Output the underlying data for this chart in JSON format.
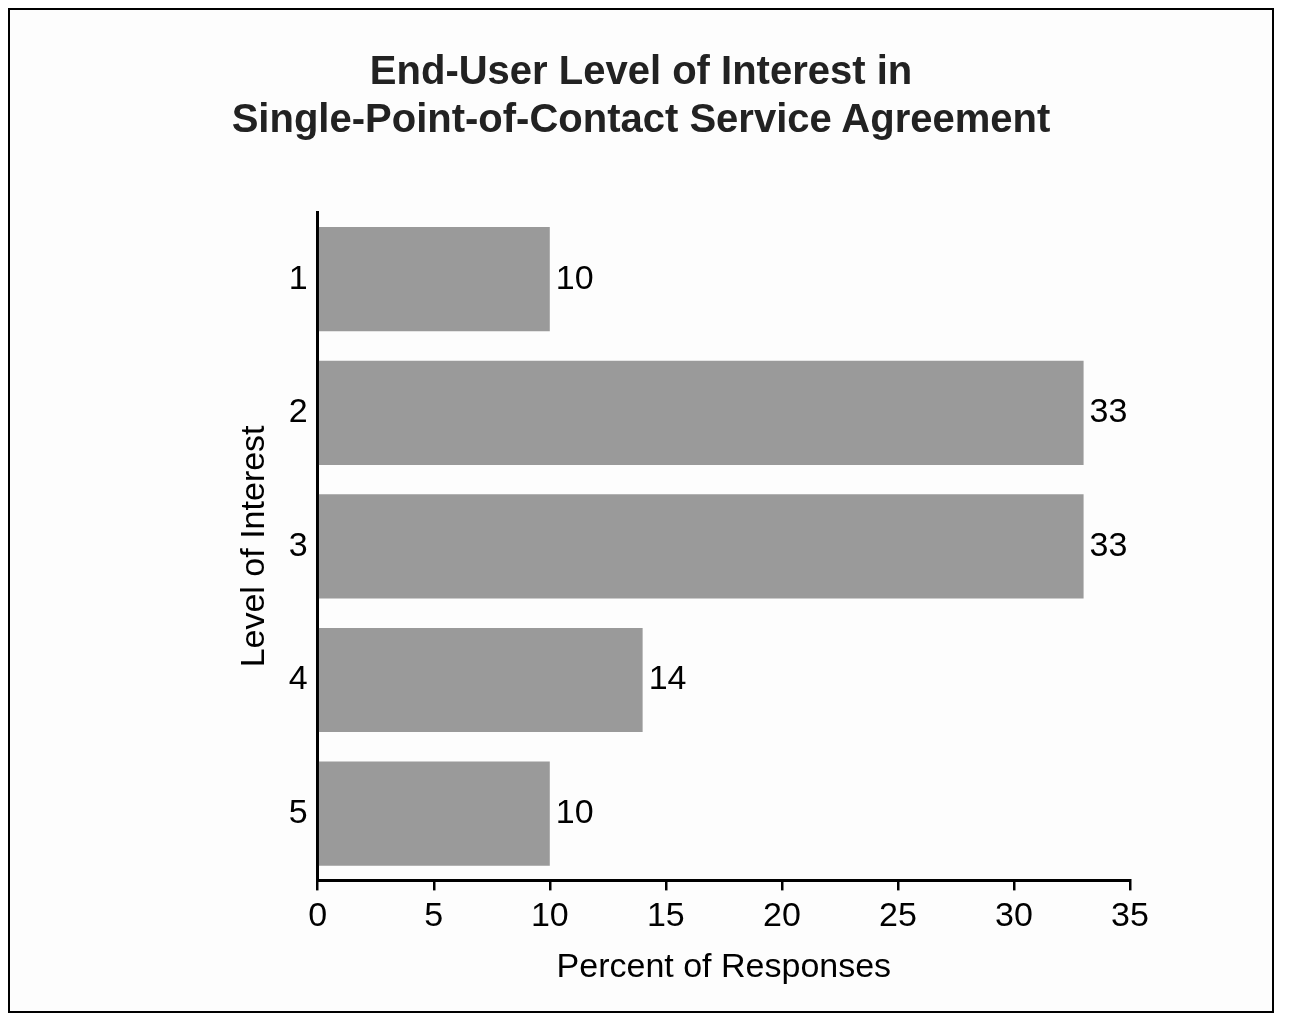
{
  "chart_data": {
    "type": "bar",
    "orientation": "horizontal",
    "title": "End-User Level of Interest in Single-Point-of-Contact Service Agreement",
    "xlabel": "Percent of Responses",
    "ylabel": "Level of Interest",
    "categories": [
      "1",
      "2",
      "3",
      "4",
      "5"
    ],
    "values": [
      10,
      33,
      33,
      14,
      10
    ],
    "color": "#9a9a9a",
    "xlim": [
      0,
      35
    ],
    "xticks": [
      0,
      5,
      10,
      15,
      20,
      25,
      30,
      35
    ],
    "data_labels": true,
    "grid": false,
    "legend": false
  }
}
